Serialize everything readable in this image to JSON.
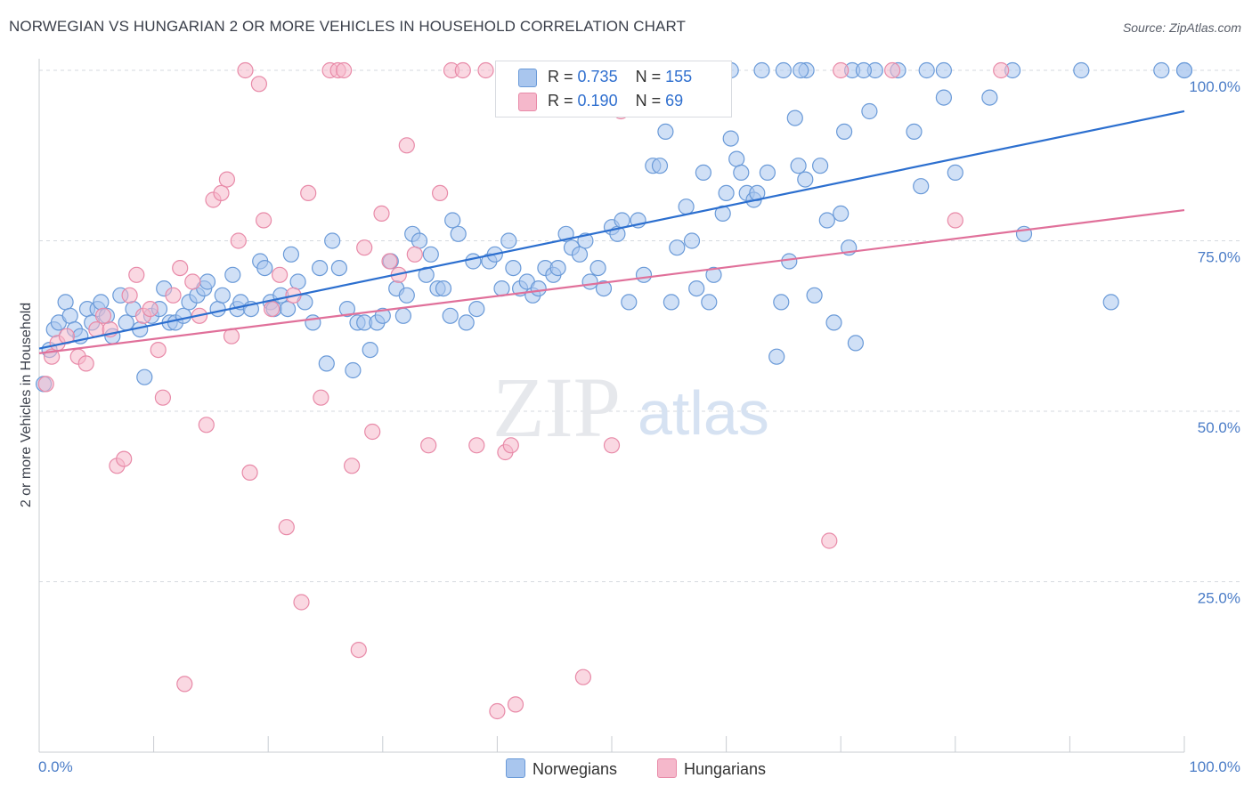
{
  "header": {
    "title": "NORWEGIAN VS HUNGARIAN 2 OR MORE VEHICLES IN HOUSEHOLD CORRELATION CHART",
    "source": "Source: ZipAtlas.com"
  },
  "watermark": {
    "zip": "ZIP",
    "atlas": "atlas"
  },
  "legend_stats": [
    {
      "r_label": "R =",
      "r_value": "0.735",
      "n_label": "N =",
      "n_value": "155",
      "color": "#a9c6ee"
    },
    {
      "r_label": "R =",
      "r_value": "0.190",
      "n_label": "N =",
      "n_value": "69",
      "color": "#f5b8cb"
    }
  ],
  "legend_bottom": [
    {
      "label": "Norwegians",
      "color": "#a9c6ee"
    },
    {
      "label": "Hungarians",
      "color": "#f5b8cb"
    }
  ],
  "colors": {
    "blue_fill": "#a9c6ee",
    "blue_stroke": "#6a9ad8",
    "blue_line": "#2c6fcf",
    "pink_fill": "#f5b8cb",
    "pink_stroke": "#e88aa8",
    "pink_line": "#e0709a",
    "tick_text": "#4a7cc7",
    "grid": "#d5d9df"
  },
  "chart_data": {
    "type": "scatter",
    "title": "NORWEGIAN VS HUNGARIAN 2 OR MORE VEHICLES IN HOUSEHOLD CORRELATION CHART",
    "xlabel": "",
    "ylabel": "2 or more Vehicles in Household",
    "xlim": [
      0,
      100
    ],
    "ylim": [
      0,
      100
    ],
    "x_tick_labels": [
      "0.0%",
      "100.0%"
    ],
    "y_tick_labels": [
      "25.0%",
      "50.0%",
      "75.0%",
      "100.0%"
    ],
    "y_ticks": [
      25,
      50,
      75,
      100
    ],
    "grid": "horizontal dashed",
    "legend_position": "top-center and bottom",
    "series": [
      {
        "name": "Norwegians",
        "r": 0.735,
        "n": 155,
        "trend": {
          "x": [
            0,
            100
          ],
          "y": [
            59.2,
            94.0
          ]
        },
        "points": [
          [
            0.4,
            54
          ],
          [
            0.9,
            59
          ],
          [
            1.3,
            62
          ],
          [
            1.7,
            63
          ],
          [
            2.3,
            66
          ],
          [
            2.7,
            64
          ],
          [
            3.1,
            62
          ],
          [
            3.6,
            61
          ],
          [
            4.2,
            65
          ],
          [
            4.6,
            63
          ],
          [
            5.1,
            65
          ],
          [
            5.4,
            66
          ],
          [
            5.9,
            64
          ],
          [
            6.4,
            61
          ],
          [
            7.1,
            67
          ],
          [
            7.6,
            63
          ],
          [
            8.2,
            65
          ],
          [
            8.8,
            62
          ],
          [
            9.2,
            55
          ],
          [
            9.8,
            64
          ],
          [
            10.5,
            65
          ],
          [
            10.9,
            68
          ],
          [
            11.4,
            63
          ],
          [
            11.9,
            63
          ],
          [
            12.6,
            64
          ],
          [
            13.1,
            66
          ],
          [
            13.8,
            67
          ],
          [
            14.4,
            68
          ],
          [
            14.7,
            69
          ],
          [
            15.6,
            65
          ],
          [
            16.0,
            67
          ],
          [
            16.9,
            70
          ],
          [
            17.3,
            65
          ],
          [
            17.6,
            66
          ],
          [
            18.5,
            65
          ],
          [
            19.3,
            72
          ],
          [
            19.7,
            71
          ],
          [
            20.2,
            66
          ],
          [
            20.5,
            65
          ],
          [
            21.1,
            67
          ],
          [
            21.7,
            65
          ],
          [
            22.0,
            73
          ],
          [
            22.6,
            69
          ],
          [
            23.2,
            66
          ],
          [
            23.9,
            63
          ],
          [
            24.5,
            71
          ],
          [
            25.1,
            57
          ],
          [
            25.6,
            75
          ],
          [
            26.2,
            71
          ],
          [
            26.9,
            65
          ],
          [
            27.4,
            56
          ],
          [
            27.8,
            63
          ],
          [
            28.4,
            63
          ],
          [
            28.9,
            59
          ],
          [
            29.5,
            63
          ],
          [
            30.0,
            64
          ],
          [
            30.7,
            72
          ],
          [
            31.2,
            68
          ],
          [
            31.8,
            64
          ],
          [
            32.1,
            67
          ],
          [
            32.6,
            76
          ],
          [
            33.2,
            75
          ],
          [
            33.8,
            70
          ],
          [
            34.2,
            73
          ],
          [
            34.8,
            68
          ],
          [
            35.3,
            68
          ],
          [
            35.9,
            64
          ],
          [
            36.1,
            78
          ],
          [
            36.6,
            76
          ],
          [
            37.3,
            63
          ],
          [
            37.9,
            72
          ],
          [
            38.2,
            65
          ],
          [
            39.3,
            72
          ],
          [
            39.8,
            73
          ],
          [
            40.4,
            68
          ],
          [
            41.0,
            75
          ],
          [
            41.4,
            71
          ],
          [
            42.0,
            68
          ],
          [
            42.6,
            69
          ],
          [
            43.1,
            67
          ],
          [
            43.6,
            68
          ],
          [
            44.2,
            71
          ],
          [
            44.9,
            70
          ],
          [
            45.3,
            71
          ],
          [
            46.0,
            76
          ],
          [
            46.5,
            74
          ],
          [
            47.2,
            73
          ],
          [
            47.7,
            75
          ],
          [
            48.1,
            69
          ],
          [
            48.8,
            71
          ],
          [
            49.3,
            68
          ],
          [
            50.0,
            77
          ],
          [
            50.5,
            76
          ],
          [
            50.9,
            78
          ],
          [
            51.5,
            66
          ],
          [
            52.3,
            78
          ],
          [
            52.8,
            70
          ],
          [
            53.6,
            86
          ],
          [
            54.2,
            86
          ],
          [
            54.7,
            91
          ],
          [
            55.2,
            66
          ],
          [
            55.7,
            74
          ],
          [
            56.5,
            80
          ],
          [
            57.0,
            75
          ],
          [
            57.4,
            68
          ],
          [
            58.0,
            85
          ],
          [
            58.5,
            66
          ],
          [
            58.9,
            70
          ],
          [
            59.7,
            79
          ],
          [
            60.0,
            82
          ],
          [
            60.4,
            90
          ],
          [
            60.9,
            87
          ],
          [
            61.3,
            85
          ],
          [
            61.8,
            82
          ],
          [
            62.4,
            81
          ],
          [
            62.7,
            82
          ],
          [
            63.6,
            85
          ],
          [
            64.4,
            58
          ],
          [
            64.8,
            66
          ],
          [
            65.5,
            72
          ],
          [
            66.0,
            93
          ],
          [
            66.3,
            86
          ],
          [
            66.9,
            84
          ],
          [
            67.7,
            67
          ],
          [
            68.2,
            86
          ],
          [
            68.8,
            78
          ],
          [
            69.4,
            63
          ],
          [
            70.0,
            79
          ],
          [
            70.3,
            91
          ],
          [
            70.7,
            74
          ],
          [
            71.3,
            60
          ],
          [
            72.5,
            94
          ],
          [
            76.4,
            91
          ],
          [
            77.0,
            83
          ],
          [
            79.0,
            96
          ],
          [
            80.0,
            85
          ],
          [
            83.0,
            96
          ],
          [
            86.0,
            76
          ],
          [
            93.6,
            66
          ],
          [
            100.0,
            100
          ],
          [
            60.4,
            100
          ],
          [
            63.1,
            100
          ],
          [
            65.0,
            100
          ],
          [
            67.0,
            100
          ],
          [
            71.0,
            100
          ],
          [
            73.0,
            100
          ],
          [
            75.0,
            100
          ],
          [
            79.0,
            100
          ],
          [
            85.0,
            100
          ],
          [
            91.0,
            100
          ],
          [
            98.0,
            100
          ],
          [
            100.0,
            100
          ],
          [
            66.5,
            100
          ],
          [
            72.0,
            100
          ],
          [
            77.5,
            100
          ]
        ]
      },
      {
        "name": "Hungarians",
        "r": 0.19,
        "n": 69,
        "trend": {
          "x": [
            0,
            100
          ],
          "y": [
            58.5,
            79.5
          ]
        },
        "points": [
          [
            0.6,
            54
          ],
          [
            1.1,
            58
          ],
          [
            1.6,
            60
          ],
          [
            2.4,
            61
          ],
          [
            3.4,
            58
          ],
          [
            4.1,
            57
          ],
          [
            5.0,
            62
          ],
          [
            5.6,
            64
          ],
          [
            6.2,
            62
          ],
          [
            6.8,
            42
          ],
          [
            7.4,
            43
          ],
          [
            7.9,
            67
          ],
          [
            8.5,
            70
          ],
          [
            9.1,
            64
          ],
          [
            9.7,
            65
          ],
          [
            10.4,
            59
          ],
          [
            10.8,
            52
          ],
          [
            11.7,
            67
          ],
          [
            12.3,
            71
          ],
          [
            12.7,
            10
          ],
          [
            13.4,
            69
          ],
          [
            14.0,
            64
          ],
          [
            14.6,
            48
          ],
          [
            15.2,
            81
          ],
          [
            15.9,
            82
          ],
          [
            16.4,
            84
          ],
          [
            16.8,
            61
          ],
          [
            17.4,
            75
          ],
          [
            18.0,
            100
          ],
          [
            18.4,
            41
          ],
          [
            19.2,
            98
          ],
          [
            19.6,
            78
          ],
          [
            20.3,
            65
          ],
          [
            21.0,
            70
          ],
          [
            21.6,
            33
          ],
          [
            22.2,
            67
          ],
          [
            22.9,
            22
          ],
          [
            23.5,
            82
          ],
          [
            24.6,
            52
          ],
          [
            25.4,
            100
          ],
          [
            26.1,
            100
          ],
          [
            26.6,
            100
          ],
          [
            27.3,
            42
          ],
          [
            27.9,
            15
          ],
          [
            28.4,
            74
          ],
          [
            29.1,
            47
          ],
          [
            29.9,
            79
          ],
          [
            30.6,
            72
          ],
          [
            31.4,
            70
          ],
          [
            32.1,
            89
          ],
          [
            32.8,
            73
          ],
          [
            34.0,
            45
          ],
          [
            35.0,
            82
          ],
          [
            36.0,
            100
          ],
          [
            37.0,
            100
          ],
          [
            38.2,
            45
          ],
          [
            39.0,
            100
          ],
          [
            40.0,
            6
          ],
          [
            40.7,
            44
          ],
          [
            41.6,
            7
          ],
          [
            41.2,
            45
          ],
          [
            42.3,
            100
          ],
          [
            47.5,
            11
          ],
          [
            50.0,
            45
          ],
          [
            50.8,
            94
          ],
          [
            59.5,
            100
          ],
          [
            69.0,
            31
          ],
          [
            70.0,
            100
          ],
          [
            74.5,
            100
          ],
          [
            80.0,
            78
          ],
          [
            84.0,
            100
          ]
        ]
      }
    ]
  }
}
